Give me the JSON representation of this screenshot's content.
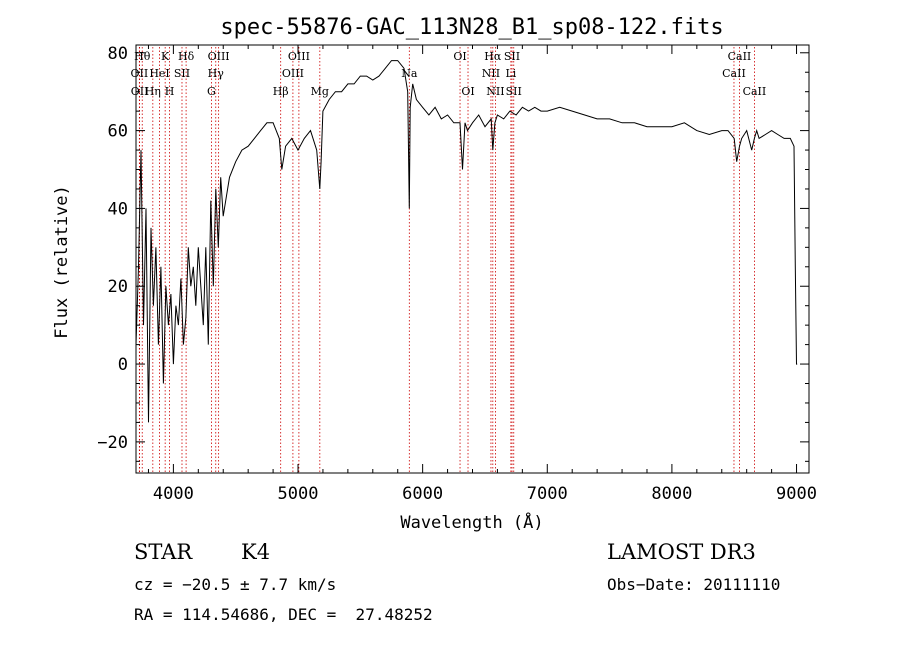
{
  "chart_data": {
    "type": "line",
    "title": "spec-55876-GAC_113N28_B1_sp08-122.fits",
    "xlabel": "Wavelength (Å)",
    "ylabel": "Flux (relative)",
    "xlim": [
      3700,
      9100
    ],
    "ylim": [
      -28,
      82
    ],
    "x_ticks": [
      "4000",
      "5000",
      "6000",
      "7000",
      "8000",
      "9000"
    ],
    "y_ticks": [
      "−20",
      "0",
      "20",
      "40",
      "60",
      "80"
    ],
    "x_tick_values": [
      4000,
      5000,
      6000,
      7000,
      8000,
      9000
    ],
    "y_tick_values": [
      -20,
      0,
      20,
      40,
      60,
      80
    ],
    "series": [
      {
        "x": [
          3700,
          3720,
          3740,
          3760,
          3780,
          3800,
          3820,
          3840,
          3860,
          3880,
          3900,
          3920,
          3940,
          3960,
          3980,
          4000,
          4020,
          4040,
          4060,
          4080,
          4100,
          4120,
          4140,
          4160,
          4180,
          4200,
          4220,
          4240,
          4260,
          4280,
          4300,
          4320,
          4340,
          4360,
          4380,
          4400,
          4450,
          4500,
          4550,
          4600,
          4650,
          4700,
          4750,
          4800,
          4850,
          4870,
          4900,
          4950,
          5000,
          5050,
          5100,
          5150,
          5175,
          5185,
          5200,
          5250,
          5300,
          5350,
          5400,
          5450,
          5500,
          5550,
          5600,
          5650,
          5700,
          5750,
          5800,
          5850,
          5880,
          5893,
          5900,
          5920,
          5950,
          6000,
          6050,
          6100,
          6150,
          6200,
          6250,
          6300,
          6320,
          6340,
          6360,
          6400,
          6450,
          6500,
          6550,
          6563,
          6580,
          6600,
          6650,
          6700,
          6750,
          6800,
          6850,
          6900,
          6950,
          7000,
          7100,
          7200,
          7300,
          7400,
          7500,
          7600,
          7700,
          7800,
          7900,
          8000,
          8100,
          8200,
          8300,
          8400,
          8450,
          8500,
          8520,
          8542,
          8560,
          8600,
          8640,
          8662,
          8680,
          8700,
          8750,
          8800,
          8850,
          8900,
          8950,
          8980,
          8990,
          9000,
          9005
        ],
        "y": [
          5,
          25,
          55,
          10,
          40,
          -15,
          35,
          15,
          30,
          5,
          25,
          -5,
          20,
          10,
          18,
          0,
          15,
          10,
          22,
          5,
          12,
          30,
          20,
          25,
          15,
          30,
          20,
          10,
          30,
          5,
          42,
          20,
          45,
          30,
          48,
          38,
          48,
          52,
          55,
          56,
          58,
          60,
          62,
          62,
          58,
          50,
          56,
          58,
          55,
          58,
          60,
          55,
          45,
          52,
          65,
          68,
          70,
          70,
          72,
          72,
          74,
          74,
          73,
          74,
          76,
          78,
          78,
          76,
          70,
          40,
          66,
          72,
          68,
          66,
          64,
          66,
          63,
          64,
          62,
          62,
          50,
          62,
          60,
          62,
          64,
          61,
          63,
          55,
          62,
          64,
          63,
          65,
          64,
          66,
          65,
          66,
          65,
          65,
          66,
          65,
          64,
          63,
          63,
          62,
          62,
          61,
          61,
          61,
          62,
          60,
          59,
          60,
          60,
          58,
          52,
          56,
          58,
          60,
          55,
          58,
          60,
          58,
          59,
          60,
          59,
          58,
          58,
          56,
          25,
          0,
          0
        ]
      }
    ],
    "lines": [
      {
        "label": "Hθ",
        "x": 3750,
        "row": 0
      },
      {
        "label": "OII",
        "x": 3727,
        "row": 1
      },
      {
        "label": "OII",
        "x": 3729,
        "row": 2
      },
      {
        "label": "Hη",
        "x": 3835,
        "row": 2
      },
      {
        "label": "K",
        "x": 3934,
        "row": 0
      },
      {
        "label": "HeI",
        "x": 3889,
        "row": 1
      },
      {
        "label": "H",
        "x": 3969,
        "row": 2
      },
      {
        "label": "SII",
        "x": 4069,
        "row": 1
      },
      {
        "label": "Hδ",
        "x": 4102,
        "row": 0
      },
      {
        "label": "OIII",
        "x": 4363,
        "row": 0
      },
      {
        "label": "Hγ",
        "x": 4340,
        "row": 1
      },
      {
        "label": "G",
        "x": 4305,
        "row": 2
      },
      {
        "label": "Hβ",
        "x": 4861,
        "row": 2
      },
      {
        "label": "OIII",
        "x": 4959,
        "row": 1
      },
      {
        "label": "OIII",
        "x": 5007,
        "row": 0
      },
      {
        "label": "Mg",
        "x": 5175,
        "row": 2
      },
      {
        "label": "Na",
        "x": 5893,
        "row": 1
      },
      {
        "label": "OI",
        "x": 6300,
        "row": 0
      },
      {
        "label": "OI",
        "x": 6364,
        "row": 2
      },
      {
        "label": "Hα",
        "x": 6563,
        "row": 0
      },
      {
        "label": "NII",
        "x": 6548,
        "row": 1
      },
      {
        "label": "NII",
        "x": 6584,
        "row": 2
      },
      {
        "label": "SII",
        "x": 6717,
        "row": 0
      },
      {
        "label": "Li",
        "x": 6708,
        "row": 1
      },
      {
        "label": "SII",
        "x": 6731,
        "row": 2
      },
      {
        "label": "CaII",
        "x": 8542,
        "row": 0
      },
      {
        "label": "CaII",
        "x": 8498,
        "row": 1
      },
      {
        "label": "CaII",
        "x": 8662,
        "row": 2
      }
    ]
  },
  "footer": {
    "obj_class": "STAR",
    "subclass": "K4",
    "cz": "cz = −20.5 ± 7.7 km/s",
    "coords": "RA = 114.54686, DEC =  27.48252",
    "survey": "LAMOST DR3",
    "obs_date": "Obs−Date: 20111110"
  }
}
